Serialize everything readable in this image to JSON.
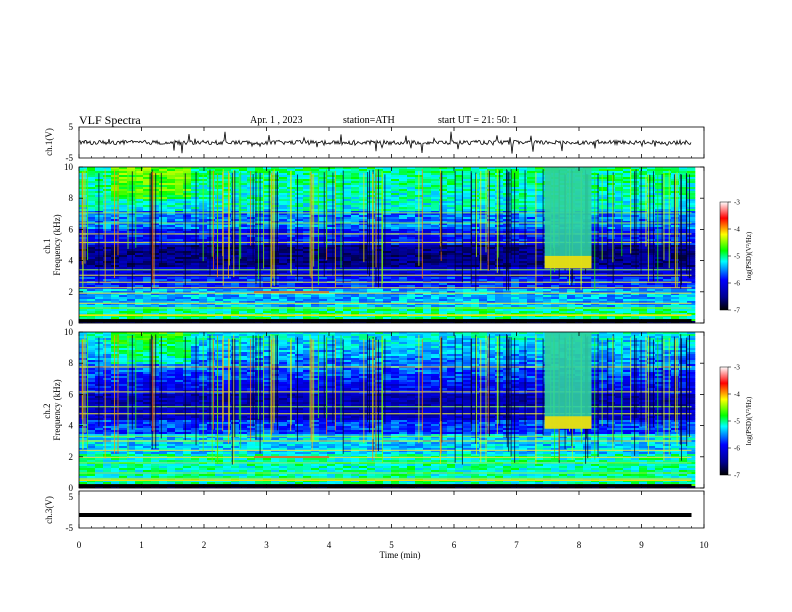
{
  "header": {
    "title": "VLF  Spectra",
    "date": "Apr. 1   , 2023",
    "station": "station=ATH",
    "start_ut": "start  UT  =    21: 50: 1"
  },
  "chart_data": [
    {
      "type": "line",
      "id": "ch1-waveform",
      "ylabel": "ch.1(V)",
      "ylim": [
        -5,
        5
      ],
      "yticks": [
        "5",
        "-5"
      ],
      "baseline": 0,
      "xlim": [
        0,
        10
      ],
      "data_end_min": 9.8
    },
    {
      "type": "heatmap",
      "id": "ch1-spectrogram",
      "ylabel": "ch.1\nFrequency  (kHz)",
      "ylim": [
        0,
        10
      ],
      "yticks": [
        "0",
        "2",
        "4",
        "6",
        "8",
        "10"
      ],
      "xlim": [
        0,
        10
      ],
      "data_end_min": 9.8,
      "colorbar": {
        "label": "log(PSD)(V²/Hz)",
        "range": [
          -7,
          -3
        ],
        "ticks": [
          "-3",
          "-4",
          "-5",
          "-6",
          "-7"
        ]
      },
      "feature": {
        "t_start_min": 7.45,
        "t_end_min": 8.2,
        "f_low_khz": 3.5,
        "f_high_khz": 10
      }
    },
    {
      "type": "heatmap",
      "id": "ch2-spectrogram",
      "ylabel": "ch.2\nFrequency  (kHz)",
      "ylim": [
        0,
        10
      ],
      "yticks": [
        "0",
        "2",
        "4",
        "6",
        "8",
        "10"
      ],
      "xlim": [
        0,
        10
      ],
      "data_end_min": 9.8,
      "colorbar": {
        "label": "log(PSD)(V²/Hz)",
        "range": [
          -7,
          -3
        ],
        "ticks": [
          "-3",
          "-4",
          "-5",
          "-6",
          "-7"
        ]
      },
      "feature": {
        "t_start_min": 7.45,
        "t_end_min": 8.2,
        "f_low_khz": 3.8,
        "f_high_khz": 10
      }
    },
    {
      "type": "line",
      "id": "ch3-waveform",
      "ylabel": "ch.3(V)",
      "ylim": [
        -5,
        5
      ],
      "yticks": [
        "5",
        "-5"
      ],
      "baseline": -1.5,
      "xlim": [
        0,
        10
      ],
      "data_end_min": 9.8,
      "xlabel": "Time  (min)",
      "xticks": [
        "0",
        "1",
        "2",
        "3",
        "4",
        "5",
        "6",
        "7",
        "8",
        "9",
        "10"
      ]
    }
  ],
  "colors": {
    "cmap": [
      "#000000",
      "#000080",
      "#0000ff",
      "#00ffff",
      "#00ff00",
      "#ffff00",
      "#ff0000",
      "#ffffff"
    ]
  }
}
